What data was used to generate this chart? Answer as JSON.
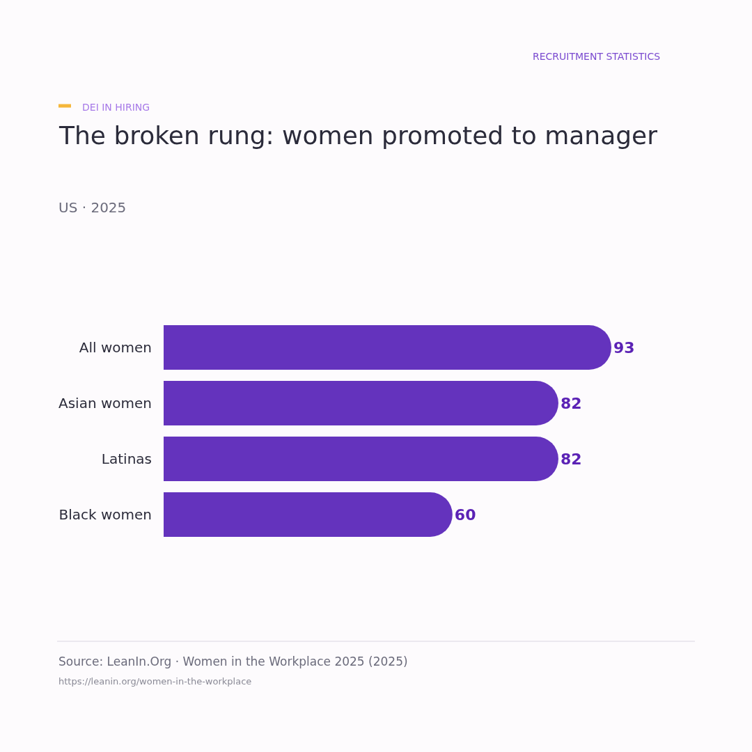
{
  "chart_data": {
    "type": "bar",
    "orientation": "horizontal",
    "title": "The broken rung: women promoted to manager",
    "subtitle": "US · 2025",
    "categories": [
      "All women",
      "Asian women",
      "Latinas",
      "Black women"
    ],
    "values": [
      93,
      82,
      82,
      60
    ],
    "color": "#6433bd",
    "data_labels": true,
    "annotations": [
      "DEI IN HIRING",
      "RECRUITMENT STATISTICS",
      "Source: LeanIn.Org · Women in the Workplace 2025 (2025)",
      "https://leanin.org/women-in-the-workplace"
    ]
  }
}
